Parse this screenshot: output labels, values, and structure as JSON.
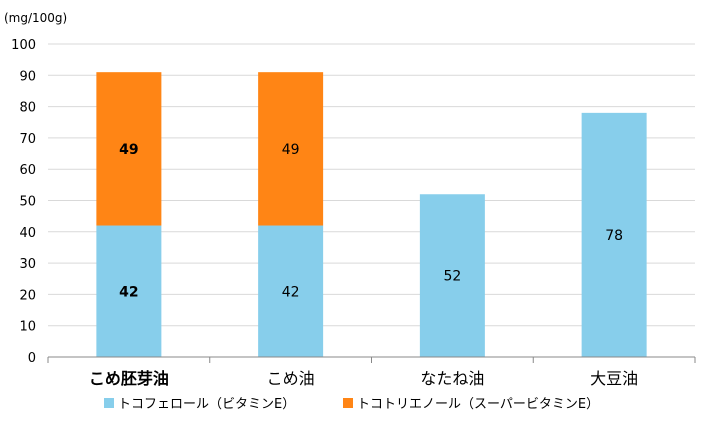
{
  "chart_data": {
    "type": "bar",
    "stacked": true,
    "unit_label": "(mg/100g)",
    "categories": [
      "こめ胚芽油",
      "こめ油",
      "なたね油",
      "大豆油"
    ],
    "bold_categories": [
      true,
      false,
      false,
      false
    ],
    "series": [
      {
        "name": "トコフェロール（ビタミンE）",
        "color": "#87ceeb",
        "values": [
          42,
          42,
          52,
          78
        ]
      },
      {
        "name": "トコトリエノール（スーパービタミンE）",
        "color": "#ff8515",
        "values": [
          49,
          49,
          null,
          null
        ]
      }
    ],
    "ylim": [
      0,
      100
    ],
    "yticks": [
      0,
      10,
      20,
      30,
      40,
      50,
      60,
      70,
      80,
      90,
      100
    ],
    "grid": true,
    "legend_position": "bottom"
  }
}
